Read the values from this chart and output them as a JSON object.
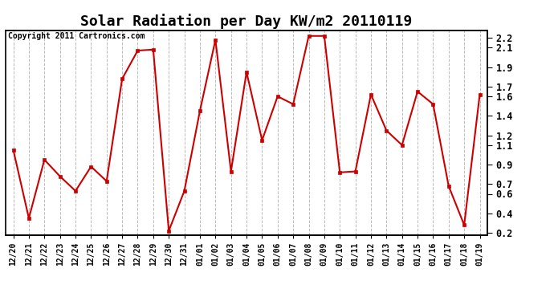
{
  "title": "Solar Radiation per Day KW/m2 20110119",
  "copyright": "Copyright 2011 Cartronics.com",
  "x_labels": [
    "12/20",
    "12/21",
    "12/22",
    "12/23",
    "12/24",
    "12/25",
    "12/26",
    "12/27",
    "12/28",
    "12/29",
    "12/30",
    "12/31",
    "01/01",
    "01/02",
    "01/03",
    "01/04",
    "01/05",
    "01/06",
    "01/07",
    "01/08",
    "01/09",
    "01/10",
    "01/11",
    "01/12",
    "01/13",
    "01/14",
    "01/15",
    "01/16",
    "01/17",
    "01/18",
    "01/19"
  ],
  "y_values": [
    1.05,
    0.35,
    0.95,
    0.78,
    0.63,
    0.88,
    0.73,
    1.78,
    2.07,
    2.08,
    0.22,
    0.63,
    1.45,
    2.18,
    0.83,
    1.85,
    1.15,
    1.6,
    1.52,
    2.22,
    2.22,
    0.82,
    0.83,
    1.62,
    1.25,
    1.1,
    1.65,
    1.52,
    0.68,
    0.28,
    1.62
  ],
  "line_color": "#cc0000",
  "marker_color": "#cc0000",
  "bg_color": "#ffffff",
  "grid_color": "#bbbbbb",
  "ylim": [
    0.18,
    2.28
  ],
  "yticks": [
    0.2,
    0.4,
    0.6,
    0.7,
    0.9,
    1.1,
    1.2,
    1.4,
    1.6,
    1.7,
    1.9,
    2.1,
    2.2
  ],
  "title_fontsize": 13,
  "copyright_fontsize": 7,
  "tick_fontsize": 8.5,
  "xtick_fontsize": 7
}
